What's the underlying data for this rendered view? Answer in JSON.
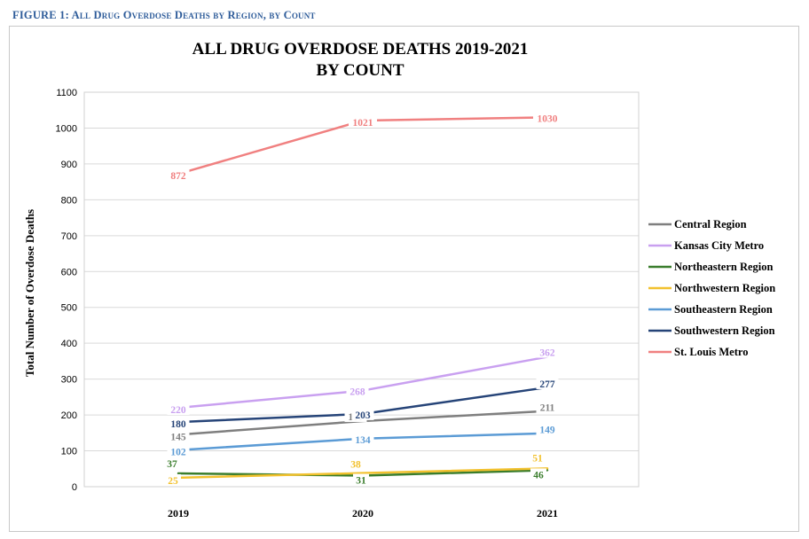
{
  "figure_caption": "FIGURE 1: All Drug Overdose Deaths by Region, by Count",
  "chart_data": {
    "type": "line",
    "title_lines": [
      "ALL DRUG OVERDOSE DEATHS 2019-2021",
      "BY COUNT"
    ],
    "xlabel": "",
    "ylabel": "Total Number of Overdose Deaths",
    "categories": [
      "2019",
      "2020",
      "2021"
    ],
    "ylim": [
      0,
      1100
    ],
    "yticks": [
      0,
      100,
      200,
      300,
      400,
      500,
      600,
      700,
      800,
      900,
      1000,
      1100
    ],
    "grid": true,
    "legend_position": "right",
    "series": [
      {
        "name": "Central Region",
        "color": "#7f7f7f",
        "values": [
          145,
          183,
          211
        ]
      },
      {
        "name": "Kansas City Metro",
        "color": "#c9a0f0",
        "values": [
          220,
          268,
          362
        ]
      },
      {
        "name": "Northeastern Region",
        "color": "#3a7d2c",
        "values": [
          37,
          31,
          46
        ]
      },
      {
        "name": "Northwestern Region",
        "color": "#f2c12e",
        "values": [
          25,
          38,
          51
        ]
      },
      {
        "name": "Southeastern Region",
        "color": "#5b9bd5",
        "values": [
          102,
          134,
          149
        ]
      },
      {
        "name": "Southwestern Region",
        "color": "#264478",
        "values": [
          180,
          203,
          277
        ]
      },
      {
        "name": "St. Louis Metro",
        "color": "#f08080",
        "values": [
          872,
          1021,
          1030
        ]
      }
    ]
  }
}
